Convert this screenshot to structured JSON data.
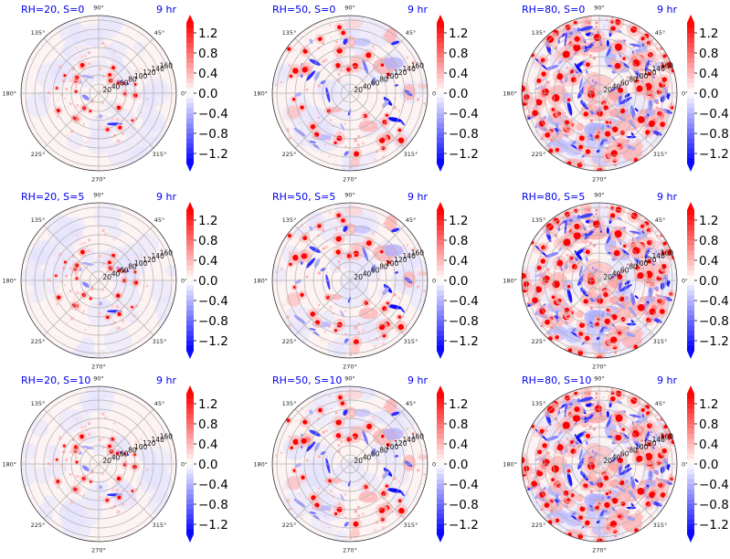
{
  "chart_data": {
    "type": "heatmap",
    "subtype": "polar-filled-contour-grid",
    "layout": {
      "rows": 3,
      "cols": 3
    },
    "colormap": "bwr",
    "color_low": "#0000ff",
    "color_mid": "#ffffff",
    "color_high": "#ff0000",
    "title_color": "#0000ee",
    "value_range": [
      -1.4,
      1.4
    ],
    "colorbar_extend": "both",
    "colorbar_ticks": [
      1.2,
      0.8,
      0.4,
      0.0,
      -0.4,
      -0.8,
      -1.2
    ],
    "colorbar_tick_labels": [
      "1.2",
      "0.8",
      "0.4",
      "0.0",
      "−0.4",
      "−0.8",
      "−1.2"
    ],
    "angular_tick_labels": [
      "0°",
      "45°",
      "90°",
      "135°",
      "180°",
      "225°",
      "270°",
      "315°"
    ],
    "angular_ticks_deg": [
      0,
      45,
      90,
      135,
      180,
      225,
      270,
      315
    ],
    "radial_ticks": [
      20,
      40,
      60,
      80,
      100,
      120,
      140,
      160
    ],
    "radial_tick_labels": [
      "20",
      "40",
      "60",
      "80",
      "100",
      "120",
      "140",
      "160"
    ],
    "radial_max": 170,
    "grid": true,
    "panels": [
      {
        "title": "RH=20, S=0",
        "time_label": "9 hr",
        "rh": 20,
        "s": 0,
        "activity": "low"
      },
      {
        "title": "RH=50, S=0",
        "time_label": "9 hr",
        "rh": 50,
        "s": 0,
        "activity": "medium"
      },
      {
        "title": "RH=80, S=0",
        "time_label": "9 hr",
        "rh": 80,
        "s": 0,
        "activity": "high"
      },
      {
        "title": "RH=20, S=5",
        "time_label": "9 hr",
        "rh": 20,
        "s": 5,
        "activity": "low"
      },
      {
        "title": "RH=50, S=5",
        "time_label": "9 hr",
        "rh": 50,
        "s": 5,
        "activity": "medium"
      },
      {
        "title": "RH=80, S=5",
        "time_label": "9 hr",
        "rh": 80,
        "s": 5,
        "activity": "high"
      },
      {
        "title": "RH=20, S=10",
        "time_label": "9 hr",
        "rh": 20,
        "s": 10,
        "activity": "low"
      },
      {
        "title": "RH=50, S=10",
        "time_label": "9 hr",
        "rh": 50,
        "s": 10,
        "activity": "medium"
      },
      {
        "title": "RH=80, S=10",
        "time_label": "9 hr",
        "rh": 80,
        "s": 10,
        "activity": "high"
      }
    ]
  }
}
